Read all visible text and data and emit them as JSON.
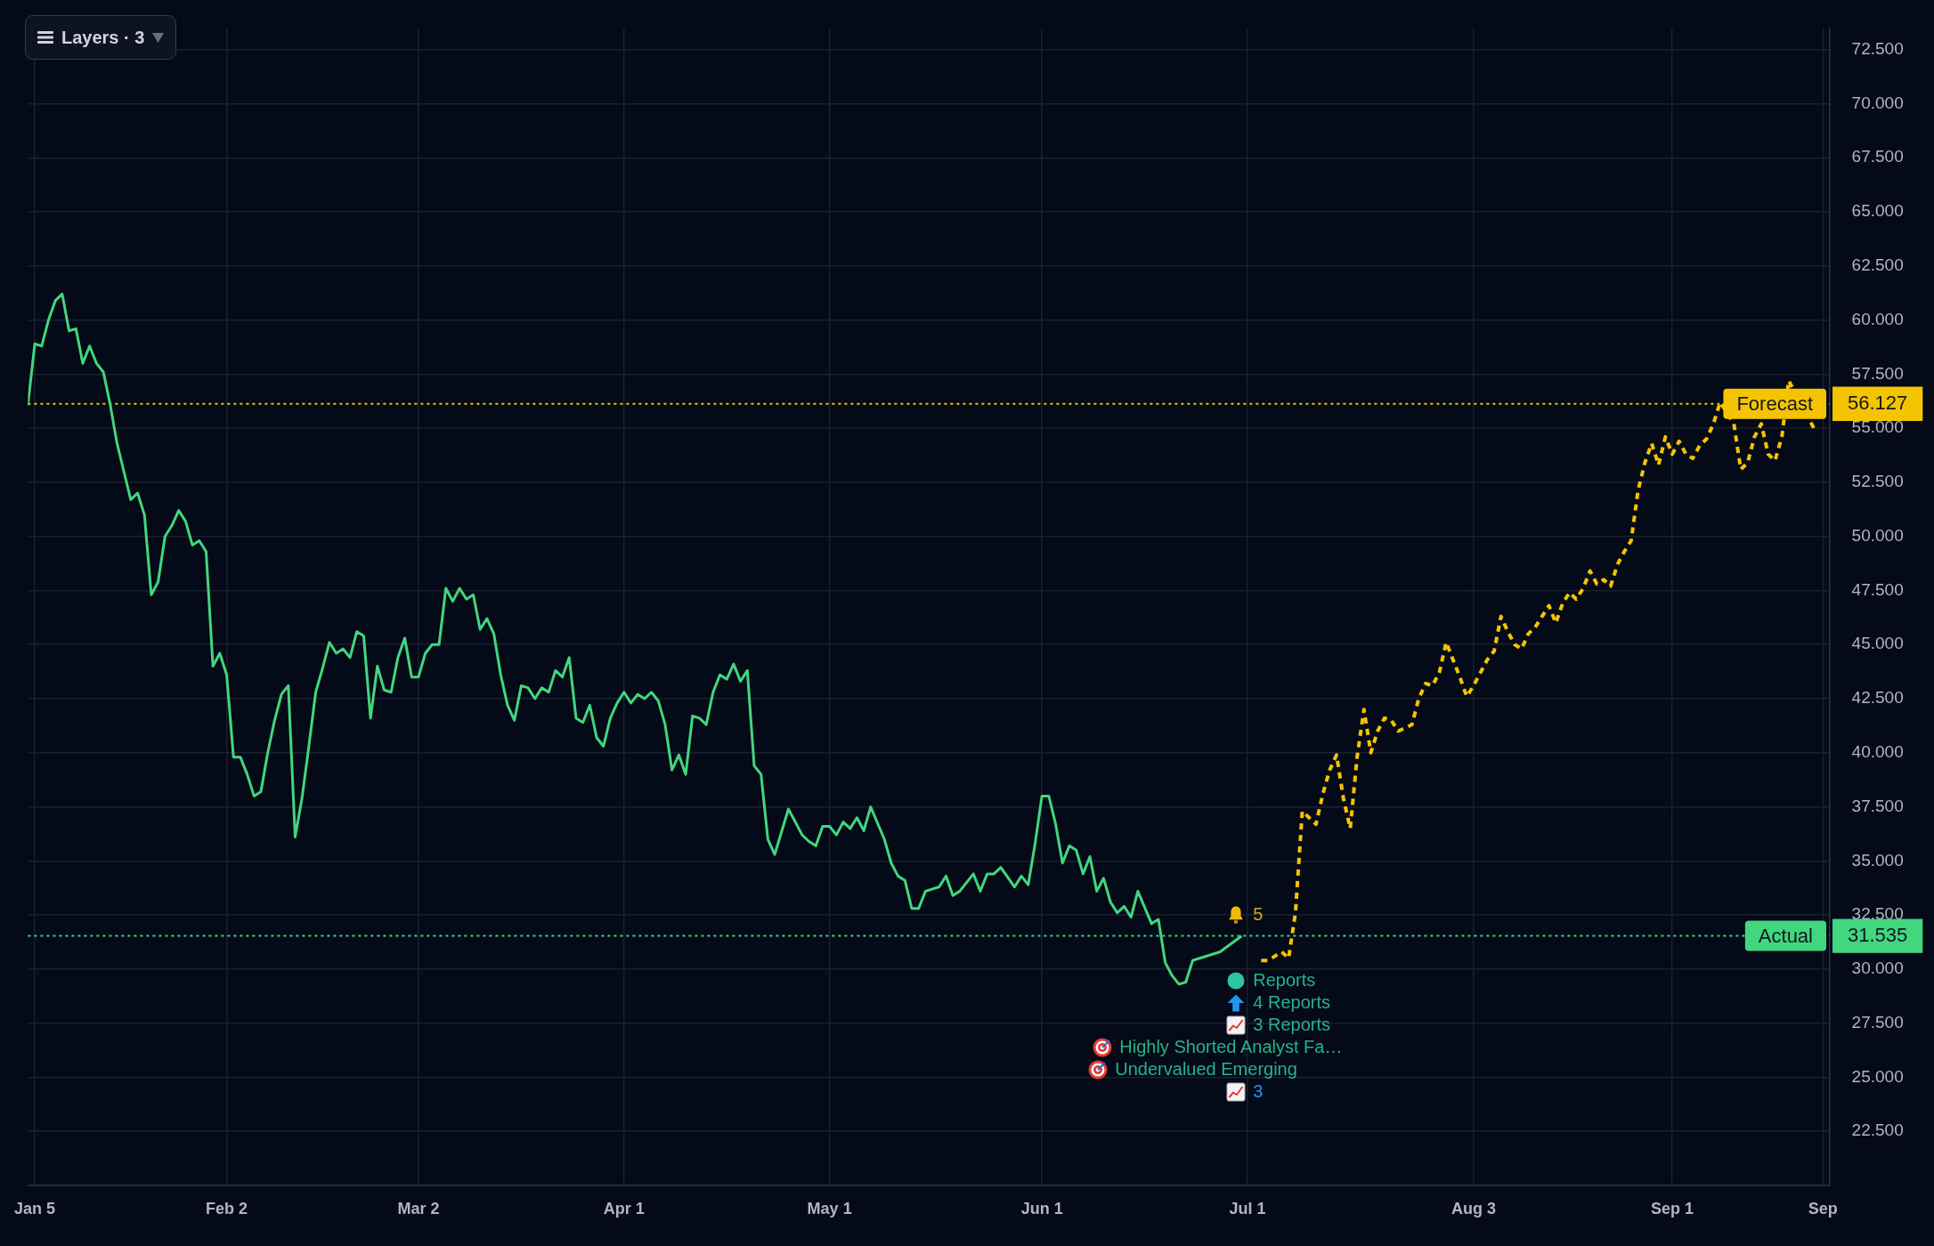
{
  "chart_data": {
    "type": "line",
    "series": [
      {
        "color": "#42d67e",
        "line_style": "solid",
        "x": [
          "--01-04",
          "--01-05",
          "--01-06",
          "--01-07",
          "--01-08",
          "--01-09",
          "--01-10",
          "--01-11",
          "--01-12",
          "--01-13",
          "--01-14",
          "--01-15",
          "--01-16",
          "--01-17",
          "--01-18",
          "--01-19",
          "--01-20",
          "--01-21",
          "--01-22",
          "--01-23",
          "--01-24",
          "--01-25",
          "--01-26",
          "--01-27",
          "--01-28",
          "--01-29",
          "--01-30",
          "--01-31",
          "--02-01",
          "--02-02",
          "--02-03",
          "--02-04",
          "--02-05",
          "--02-06",
          "--02-07",
          "--02-08",
          "--02-09",
          "--02-10",
          "--02-11",
          "--02-12",
          "--02-13",
          "--02-14",
          "--02-15",
          "--02-16",
          "--02-17",
          "--02-18",
          "--02-19",
          "--02-20",
          "--02-21",
          "--02-22",
          "--02-23",
          "--02-24",
          "--02-25",
          "--02-26",
          "--02-27",
          "--02-28",
          "--03-01",
          "--03-02",
          "--03-03",
          "--03-04",
          "--03-05",
          "--03-06",
          "--03-07",
          "--03-08",
          "--03-09",
          "--03-10",
          "--03-11",
          "--03-12",
          "--03-13",
          "--03-14",
          "--03-15",
          "--03-16",
          "--03-17",
          "--03-18",
          "--03-19",
          "--03-20",
          "--03-21",
          "--03-22",
          "--03-23",
          "--03-24",
          "--03-25",
          "--03-26",
          "--03-27",
          "--03-28",
          "--03-29",
          "--03-30",
          "--03-31",
          "--04-01",
          "--04-02",
          "--04-03",
          "--04-04",
          "--04-05",
          "--04-06",
          "--04-07",
          "--04-08",
          "--04-09",
          "--04-10",
          "--04-11",
          "--04-12",
          "--04-13",
          "--04-14",
          "--04-15",
          "--04-16",
          "--04-17",
          "--04-18",
          "--04-19",
          "--04-20",
          "--04-21",
          "--04-22",
          "--04-23",
          "--04-25",
          "--04-27",
          "--04-28",
          "--04-29",
          "--04-30",
          "--05-01",
          "--05-02",
          "--05-03",
          "--05-04",
          "--05-05",
          "--05-06",
          "--05-07",
          "--05-09",
          "--05-10",
          "--05-11",
          "--05-12",
          "--05-13",
          "--05-14",
          "--05-15",
          "--05-17",
          "--05-18",
          "--05-19",
          "--05-20",
          "--05-22",
          "--05-23",
          "--05-24",
          "--05-25",
          "--05-26",
          "--05-28",
          "--05-29",
          "--05-30",
          "--05-31",
          "--06-01",
          "--06-02",
          "--06-03",
          "--06-04",
          "--06-05",
          "--06-06",
          "--06-07",
          "--06-08",
          "--06-09",
          "--06-10",
          "--06-11",
          "--06-12",
          "--06-13",
          "--06-14",
          "--06-15",
          "--06-17",
          "--06-18",
          "--06-19",
          "--06-20",
          "--06-21",
          "--06-22",
          "--06-23",
          "--06-24",
          "--06-27",
          "--06-30"
        ],
        "values": [
          56.1,
          58.9,
          58.8,
          60.0,
          60.9,
          61.2,
          59.5,
          59.6,
          58.0,
          58.8,
          58.0,
          57.6,
          56.1,
          54.3,
          53.0,
          51.7,
          52.0,
          51.0,
          47.3,
          47.9,
          50.0,
          50.5,
          51.2,
          50.7,
          49.6,
          49.8,
          49.3,
          44.0,
          44.6,
          43.6,
          39.8,
          39.8,
          39.0,
          38.0,
          38.2,
          40.0,
          41.5,
          42.7,
          43.1,
          36.1,
          37.9,
          40.3,
          42.8,
          43.9,
          45.1,
          44.6,
          44.8,
          44.4,
          45.6,
          45.4,
          41.6,
          44.0,
          42.9,
          42.8,
          44.4,
          45.3,
          43.5,
          43.5,
          44.6,
          45.0,
          45.0,
          47.6,
          47.0,
          47.6,
          47.1,
          47.3,
          45.7,
          46.2,
          45.5,
          43.6,
          42.2,
          41.5,
          43.1,
          43.0,
          42.5,
          43.0,
          42.8,
          43.8,
          43.5,
          44.4,
          41.6,
          41.4,
          42.2,
          40.7,
          40.3,
          41.6,
          42.3,
          42.8,
          42.3,
          42.7,
          42.5,
          42.8,
          42.4,
          41.3,
          39.2,
          39.9,
          39.0,
          41.7,
          41.6,
          41.3,
          42.8,
          43.6,
          43.4,
          44.1,
          43.3,
          43.8,
          39.4,
          39.0,
          36.0,
          35.3,
          37.4,
          36.2,
          35.9,
          35.7,
          36.6,
          36.6,
          36.2,
          36.8,
          36.5,
          37.0,
          36.4,
          37.5,
          36.0,
          34.9,
          34.3,
          34.1,
          32.8,
          32.8,
          33.6,
          33.8,
          34.3,
          33.4,
          33.6,
          34.4,
          33.6,
          34.4,
          34.4,
          34.7,
          33.8,
          34.3,
          33.9,
          35.8,
          38.0,
          38.0,
          36.7,
          34.9,
          35.7,
          35.5,
          34.4,
          35.2,
          33.6,
          34.2,
          33.1,
          32.6,
          32.9,
          32.4,
          33.6,
          32.1,
          32.3,
          30.3,
          29.7,
          29.3,
          29.4,
          30.4,
          30.5,
          30.8,
          31.5
        ]
      },
      {
        "color": "#f5c400",
        "line_style": "dotted",
        "x": [
          "--07-03",
          "--07-04",
          "--07-06",
          "--07-07",
          "--07-08",
          "--07-09",
          "--07-11",
          "--07-12",
          "--07-13",
          "--07-14",
          "--07-15",
          "--07-16",
          "--07-17",
          "--07-18",
          "--07-19",
          "--07-20",
          "--07-21",
          "--07-22",
          "--07-23",
          "--07-25",
          "--07-26",
          "--07-27",
          "--07-28",
          "--07-29",
          "--07-30",
          "--08-01",
          "--08-02",
          "--08-03",
          "--08-04",
          "--08-05",
          "--08-06",
          "--08-07",
          "--08-08",
          "--08-09",
          "--08-10",
          "--08-11",
          "--08-12",
          "--08-14",
          "--08-15",
          "--08-16",
          "--08-17",
          "--08-18",
          "--08-19",
          "--08-20",
          "--08-21",
          "--08-22",
          "--08-23",
          "--08-24",
          "--08-25",
          "--08-26",
          "--08-27",
          "--08-28",
          "--08-29",
          "--08-30",
          "--08-31",
          "--09-01",
          "--09-02",
          "--09-03",
          "--09-04",
          "--09-05",
          "--09-06",
          "--09-07",
          "--09-08",
          "--09-10",
          "--09-11",
          "--09-12",
          "--09-13",
          "--09-14",
          "--09-15",
          "--09-16",
          "--09-17",
          "--09-18",
          "--09-22"
        ],
        "values": [
          30.4,
          30.4,
          30.8,
          30.5,
          32.6,
          37.3,
          36.7,
          38.1,
          39.2,
          39.9,
          37.9,
          36.5,
          39.8,
          42.0,
          40.0,
          41.0,
          41.6,
          41.5,
          41.0,
          41.3,
          42.5,
          43.2,
          43.1,
          43.7,
          45.1,
          43.5,
          42.6,
          43.1,
          43.7,
          44.3,
          44.7,
          46.3,
          45.6,
          45.0,
          44.8,
          45.5,
          45.8,
          46.8,
          46.0,
          46.9,
          47.4,
          47.1,
          47.6,
          48.4,
          47.8,
          48.0,
          47.7,
          48.7,
          49.3,
          49.8,
          52.1,
          53.4,
          54.3,
          53.3,
          54.6,
          53.8,
          54.4,
          53.8,
          53.6,
          54.2,
          54.5,
          55.2,
          56.2,
          55.2,
          53.1,
          53.4,
          54.6,
          55.2,
          53.8,
          53.5,
          54.6,
          57.2,
          54.8
        ]
      }
    ],
    "xlim": [
      "--01-04",
      "--09-24"
    ],
    "xticks": [
      {
        "value": "--01-05",
        "label": "Jan 5"
      },
      {
        "value": "--02-02",
        "label": "Feb 2"
      },
      {
        "value": "--03-02",
        "label": "Mar 2"
      },
      {
        "value": "--04-01",
        "label": "Apr 1"
      },
      {
        "value": "--05-01",
        "label": "May 1"
      },
      {
        "value": "--06-01",
        "label": "Jun 1"
      },
      {
        "value": "--07-01",
        "label": "Jul 1"
      },
      {
        "value": "--08-03",
        "label": "Aug 3"
      },
      {
        "value": "--09-01",
        "label": "Sep 1"
      },
      {
        "value": "--09-23",
        "label": "Sep"
      }
    ],
    "ylim": [
      20,
      73.5
    ],
    "yticks": [
      {
        "value": 22.5,
        "label": "22.500"
      },
      {
        "value": 25,
        "label": "25.000"
      },
      {
        "value": 27.5,
        "label": "27.500"
      },
      {
        "value": 30,
        "label": "30.000"
      },
      31.535,
      {
        "value": 32.5,
        "label": "32.500"
      },
      {
        "value": 35,
        "label": "35.000"
      },
      {
        "value": 37.5,
        "label": "37.500"
      },
      {
        "value": 40,
        "label": "40.000"
      },
      {
        "value": 42.5,
        "label": "42.500"
      },
      {
        "value": 45,
        "label": "45.000"
      },
      {
        "value": 47.5,
        "label": "47.500"
      },
      {
        "value": 50,
        "label": "50.000"
      },
      {
        "value": 52.5,
        "label": "52.500"
      },
      {
        "value": 55,
        "label": "55.000"
      },
      56.127,
      {
        "value": 57.5,
        "label": "57.500"
      },
      {
        "value": 60,
        "label": "60.000"
      },
      {
        "value": 62.5,
        "label": "62.500"
      },
      {
        "value": 65,
        "label": "65.000"
      },
      {
        "value": 67.5,
        "label": "67.500"
      },
      {
        "value": 70,
        "label": "70.000"
      },
      {
        "value": 72.5,
        "label": "72.500"
      }
    ],
    "ref_lines": [
      {
        "axis": "y",
        "value": 56.127,
        "label": "Forecast",
        "color": "#f5c400",
        "line_style": "dotted"
      },
      {
        "axis": "y",
        "value": 31.535,
        "label": "Actual",
        "color": "#42d67e",
        "line_style": "dotted"
      }
    ],
    "annotations": [
      "Layers · 3",
      "5",
      "Reports",
      "4 Reports",
      "3 Reports",
      "Highly Shorted Analyst Fa…",
      "Undervalued Emerging",
      "3"
    ],
    "grid": true
  }
}
